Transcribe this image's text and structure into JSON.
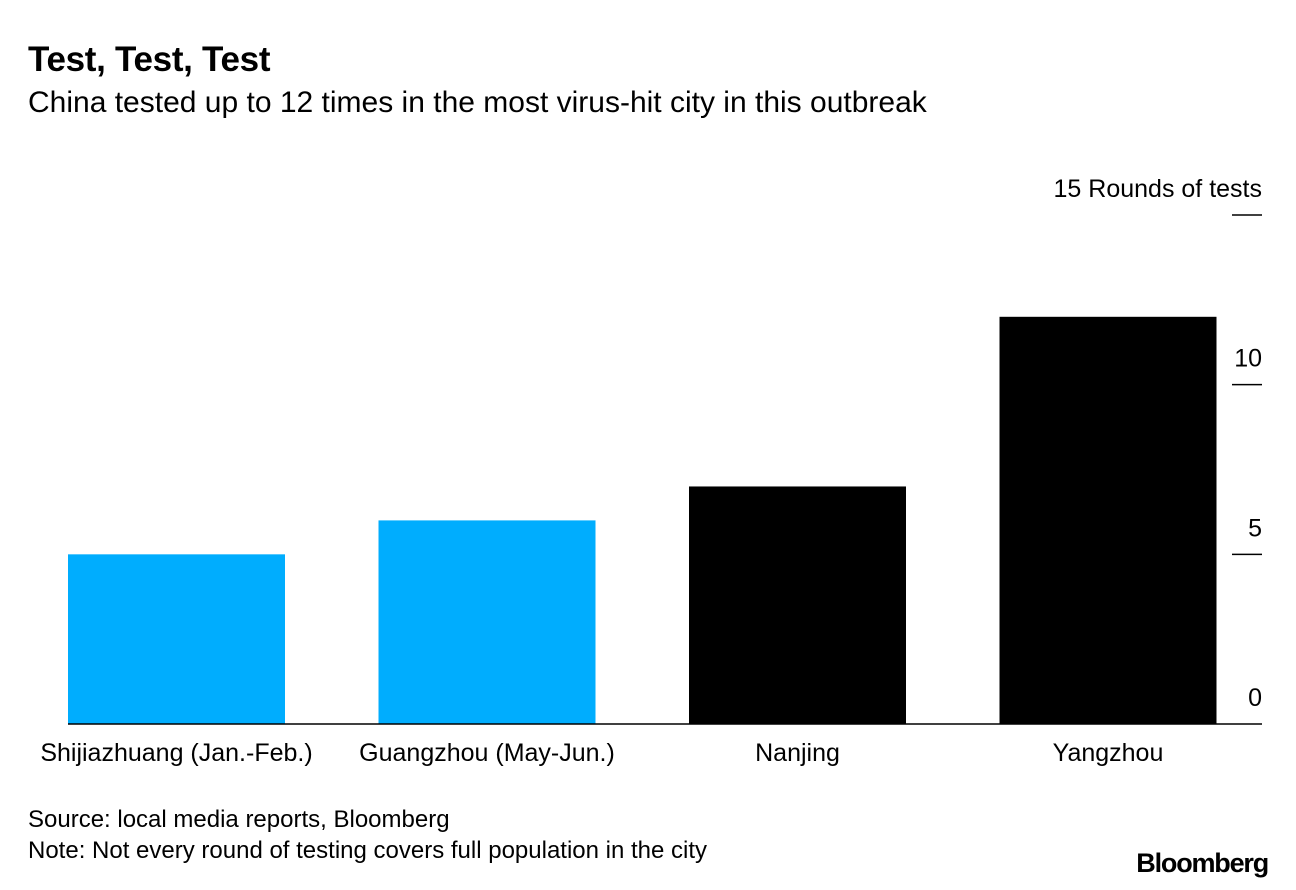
{
  "chart_data": {
    "type": "bar",
    "title": "Test, Test, Test",
    "subtitle": "China tested up to 12 times in the most virus-hit city in this outbreak",
    "categories": [
      "Shijiazhuang (Jan.-Feb.)",
      "Guangzhou (May-Jun.)",
      "Nanjing",
      "Yangzhou"
    ],
    "values": [
      5,
      6,
      7,
      12
    ],
    "bar_colors": [
      "#00adfe",
      "#00adfe",
      "#000000",
      "#000000"
    ],
    "ylabel": "Rounds of tests",
    "ylim": [
      0,
      15
    ],
    "yticks": [
      0,
      5,
      10,
      15
    ],
    "ytick_labels": [
      "0",
      "5",
      "10",
      "15 Rounds of tests"
    ],
    "yaxis_position": "right",
    "grid": false
  },
  "footer": {
    "source": "Source: local media reports, Bloomberg",
    "note": "Note: Not every round of testing covers full population in the city",
    "brand": "Bloomberg"
  }
}
